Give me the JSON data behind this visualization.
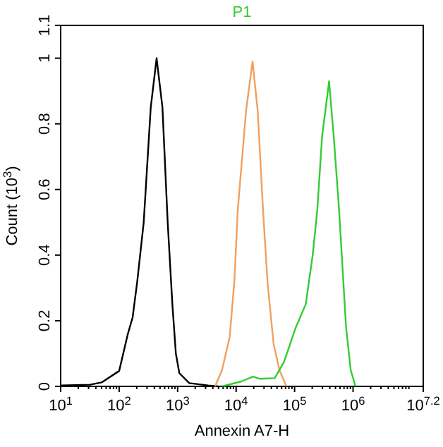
{
  "chart_data": {
    "type": "line",
    "title": "P1",
    "xlabel": "Annexin A7-H",
    "ylabel": "Count (10$^{3}$)",
    "log": "x",
    "xlim": [
      10,
      15848932
    ],
    "xticks": [
      {
        "value": 10,
        "label": "10$^{1}$"
      },
      {
        "value": 100,
        "label": "10$^{2}$"
      },
      {
        "value": 1000,
        "label": "10$^{3}$"
      },
      {
        "value": 10000,
        "label": "10$^{4}$"
      },
      {
        "value": 100000,
        "label": "10$^{5}$"
      },
      {
        "value": 1000000,
        "label": "10$^{6}$"
      },
      {
        "value": 15848932,
        "label": "10$^{7.2}$"
      }
    ],
    "ylim": [
      0,
      1.1
    ],
    "yticks": [
      0,
      0.2,
      0.4,
      0.6,
      0.8,
      1,
      1.1
    ],
    "grid": false,
    "marker": "none",
    "line_style": "solid",
    "series": [
      {
        "color": "#000000",
        "x": [
          10,
          31.6,
          50.1,
          100,
          141,
          170,
          204,
          263,
          347,
          437,
          550,
          676,
          813,
          933,
          1070,
          1580,
          3310,
          5010
        ],
        "values": [
          0.003,
          0.005,
          0.012,
          0.047,
          0.16,
          0.21,
          0.32,
          0.5,
          0.85,
          1.0,
          0.85,
          0.5,
          0.25,
          0.1,
          0.04,
          0.01,
          0.003,
          0
        ]
      },
      {
        "color": "#f0a060",
        "x": [
          4370,
          5750,
          7760,
          9330,
          10700,
          14800,
          19100,
          23400,
          28800,
          34700,
          43700,
          55000,
          72400
        ],
        "values": [
          0,
          0.05,
          0.15,
          0.32,
          0.54,
          0.84,
          0.99,
          0.84,
          0.54,
          0.31,
          0.13,
          0.05,
          0
        ]
      },
      {
        "color": "#33cc33",
        "x": [
          5750,
          12300,
          19500,
          25700,
          45700,
          66100,
          105000,
          155000,
          204000,
          245000,
          295000,
          389000,
          468000,
          575000,
          759000,
          912000,
          1100000
        ],
        "values": [
          0,
          0.015,
          0.03,
          0.023,
          0.025,
          0.075,
          0.18,
          0.25,
          0.4,
          0.54,
          0.76,
          0.93,
          0.76,
          0.54,
          0.18,
          0.05,
          0
        ]
      }
    ]
  }
}
